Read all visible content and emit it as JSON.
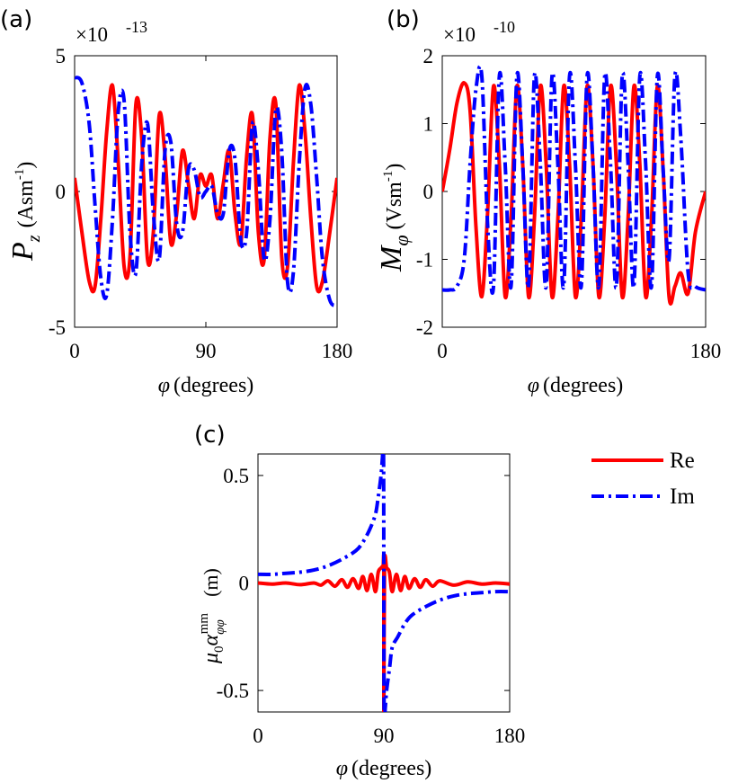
{
  "chart_data": [
    {
      "type": "line",
      "panel": "(a)",
      "ylabel": "P_z (Asm^-1)",
      "ylabel_symbol": "P",
      "ylabel_sub": "z",
      "ylabel_unit": "(Asm",
      "ylabel_exp": "-1",
      "ylabel_close": ")",
      "xlabel": "φ (degrees)",
      "xlabel_symbol": "φ",
      "xlabel_unit": "(degrees)",
      "multiplier": "×10",
      "multiplier_exp": "-13",
      "xlim": [
        0,
        180
      ],
      "ylim": [
        -5,
        5
      ],
      "xticks": [
        "0",
        "90",
        "180"
      ],
      "yticks": [
        "5",
        "0",
        "-5"
      ],
      "ytick_values": [
        5,
        0,
        -5
      ],
      "xtick_values": [
        0,
        90,
        180
      ],
      "series": [
        {
          "name": "Re",
          "color": "#ff0000",
          "style": "solid",
          "x": [
            0,
            5,
            10,
            14,
            18,
            22,
            26,
            30,
            34,
            38,
            42,
            46,
            50,
            54,
            58,
            62,
            66,
            70,
            74,
            78,
            82,
            86,
            90,
            94,
            98,
            102,
            106,
            110,
            114,
            118,
            122,
            126,
            130,
            134,
            138,
            142,
            146,
            150,
            154,
            158,
            162,
            166,
            170,
            175,
            180
          ],
          "y": [
            0.5,
            -1.5,
            -3.3,
            -3.5,
            -1.0,
            2.2,
            3.9,
            1.0,
            -2.8,
            -2.4,
            3.2,
            2.0,
            -2.5,
            -1.5,
            2.8,
            1.3,
            -1.9,
            -0.8,
            1.5,
            0.3,
            -1.0,
            0.6,
            0.2,
            0.6,
            -1.0,
            0.3,
            1.5,
            -0.8,
            -1.9,
            1.3,
            2.8,
            -1.5,
            -2.5,
            2.0,
            3.2,
            -2.4,
            -2.8,
            1.0,
            3.9,
            2.2,
            -1.0,
            -3.5,
            -3.3,
            -1.5,
            0.5
          ]
        },
        {
          "name": "Im",
          "color": "#0000ff",
          "style": "dashdot",
          "x": [
            0,
            5,
            10,
            14,
            18,
            22,
            26,
            30,
            34,
            38,
            42,
            46,
            50,
            54,
            58,
            62,
            66,
            70,
            74,
            78,
            82,
            86,
            90,
            94,
            98,
            102,
            106,
            110,
            114,
            118,
            122,
            126,
            130,
            134,
            138,
            142,
            146,
            150,
            154,
            158,
            162,
            166,
            170,
            175,
            180
          ],
          "y": [
            4.2,
            4.0,
            2.5,
            -0.5,
            -3.2,
            -3.8,
            -1.0,
            3.0,
            3.3,
            -1.5,
            -3.0,
            1.0,
            2.5,
            -0.8,
            -2.5,
            1.5,
            1.8,
            -1.2,
            -1.5,
            0.8,
            0.8,
            -0.2,
            0.0,
            0.2,
            -0.8,
            -0.8,
            1.5,
            1.2,
            -1.8,
            -1.5,
            2.5,
            0.8,
            -2.5,
            -1.0,
            3.0,
            1.5,
            -3.3,
            -3.0,
            1.0,
            3.8,
            3.2,
            0.5,
            -2.5,
            -4.0,
            -4.2
          ]
        }
      ]
    },
    {
      "type": "line",
      "panel": "(b)",
      "ylabel": "M_φ (Vsm^-1)",
      "ylabel_symbol": "M",
      "ylabel_sub": "φ",
      "ylabel_unit": "(Vsm",
      "ylabel_exp": "-1",
      "ylabel_close": ")",
      "xlabel": "φ (degrees)",
      "xlabel_symbol": "φ",
      "xlabel_unit": "(degrees)",
      "multiplier": "×10",
      "multiplier_exp": "-10",
      "xlim": [
        0,
        180
      ],
      "ylim": [
        -2,
        2
      ],
      "xticks": [
        "0",
        "180"
      ],
      "xtick_values": [
        0,
        180
      ],
      "yticks": [
        "2",
        "1",
        "0",
        "-1",
        "-2"
      ],
      "ytick_values": [
        2,
        1,
        0,
        -1,
        -2
      ],
      "series": [
        {
          "name": "Re",
          "color": "#ff0000",
          "style": "solid",
          "x": [
            0,
            5,
            10,
            15,
            19,
            23,
            27,
            31,
            35,
            39,
            43,
            47,
            51,
            55,
            59,
            63,
            67,
            71,
            75,
            79,
            83,
            87,
            91,
            95,
            99,
            103,
            107,
            111,
            115,
            119,
            123,
            127,
            131,
            135,
            139,
            143,
            147,
            151,
            155,
            159,
            163,
            168,
            173,
            180
          ],
          "y": [
            0.0,
            0.6,
            1.3,
            1.6,
            1.2,
            -0.5,
            -1.55,
            -0.3,
            1.55,
            0.4,
            -1.55,
            -0.4,
            1.55,
            0.4,
            -1.55,
            -0.4,
            1.55,
            0.4,
            -1.55,
            -0.4,
            1.55,
            0.4,
            -1.55,
            -0.4,
            1.55,
            0.4,
            -1.55,
            -0.4,
            1.55,
            0.4,
            -1.55,
            -0.4,
            1.55,
            0.4,
            -1.55,
            -0.4,
            1.55,
            0.3,
            -1.55,
            -1.4,
            -1.2,
            -1.5,
            -0.6,
            0.0
          ]
        },
        {
          "name": "Im",
          "color": "#0000ff",
          "style": "dashdot",
          "x": [
            0,
            5,
            10,
            15,
            19,
            23,
            27,
            31,
            35,
            39,
            43,
            47,
            51,
            55,
            59,
            63,
            67,
            71,
            75,
            79,
            83,
            87,
            91,
            95,
            99,
            103,
            107,
            111,
            115,
            119,
            123,
            127,
            131,
            135,
            139,
            143,
            147,
            151,
            155,
            159,
            163,
            168,
            173,
            180
          ],
          "y": [
            -1.45,
            -1.45,
            -1.4,
            -1.0,
            0.4,
            1.5,
            1.7,
            -0.5,
            -1.4,
            1.7,
            0.4,
            -1.4,
            1.7,
            0.4,
            -1.4,
            1.7,
            0.4,
            -1.4,
            1.7,
            0.4,
            -1.4,
            1.7,
            0.4,
            -1.4,
            1.7,
            0.4,
            -1.4,
            1.7,
            0.4,
            -1.4,
            1.7,
            0.4,
            -1.4,
            1.7,
            0.4,
            -1.4,
            1.7,
            0.3,
            -1.0,
            1.7,
            0.8,
            -1.2,
            -1.4,
            -1.45
          ]
        }
      ]
    },
    {
      "type": "line",
      "panel": "(c)",
      "ylabel": "μ0 α_φφ^mm (m)",
      "ylabel_mu": "μ",
      "ylabel_mu_sub": "0",
      "ylabel_alpha": "α",
      "ylabel_sub": "φφ",
      "ylabel_sup": "mm",
      "ylabel_unit": "(m)",
      "xlabel": "φ (degrees)",
      "xlabel_symbol": "φ",
      "xlabel_unit": "(degrees)",
      "xlim": [
        0,
        180
      ],
      "ylim": [
        -0.6,
        0.6
      ],
      "xticks": [
        "0",
        "90",
        "180"
      ],
      "xtick_values": [
        0,
        90,
        180
      ],
      "yticks": [
        "0.5",
        "0",
        "-0.5"
      ],
      "ytick_values": [
        0.5,
        0,
        -0.5
      ],
      "series": [
        {
          "name": "Re",
          "color": "#ff0000",
          "style": "solid",
          "x": [
            0,
            10,
            20,
            30,
            40,
            45,
            50,
            55,
            60,
            64,
            68,
            72,
            75,
            78,
            81,
            84,
            86,
            88,
            89.5,
            90,
            90,
            90.5,
            92,
            94,
            96,
            99,
            102,
            105,
            108,
            112,
            116,
            120,
            125,
            130,
            140,
            150,
            160,
            170,
            180
          ],
          "y": [
            0.0,
            -0.005,
            0.0,
            -0.008,
            0.0,
            -0.01,
            0.01,
            -0.015,
            0.015,
            -0.02,
            0.02,
            -0.025,
            0.03,
            -0.035,
            0.04,
            -0.04,
            0.05,
            0.07,
            0.08,
            0.08,
            -0.6,
            0.08,
            0.07,
            0.05,
            -0.04,
            0.04,
            -0.035,
            0.03,
            -0.025,
            0.02,
            -0.02,
            0.015,
            -0.015,
            0.01,
            -0.01,
            0.005,
            -0.005,
            0.0,
            -0.005
          ]
        },
        {
          "name": "Im",
          "color": "#0000ff",
          "style": "dashdot",
          "x": [
            0,
            10,
            20,
            30,
            40,
            50,
            60,
            70,
            75,
            80,
            84,
            86,
            88,
            89,
            89.8,
            90.2,
            91,
            92,
            94,
            96,
            100,
            105,
            110,
            120,
            130,
            140,
            150,
            160,
            170,
            180
          ],
          "y": [
            0.04,
            0.04,
            0.045,
            0.05,
            0.06,
            0.08,
            0.11,
            0.15,
            0.19,
            0.25,
            0.32,
            0.4,
            0.5,
            0.58,
            0.6,
            -0.6,
            -0.58,
            -0.5,
            -0.4,
            -0.3,
            -0.25,
            -0.19,
            -0.15,
            -0.11,
            -0.08,
            -0.06,
            -0.05,
            -0.045,
            -0.04,
            -0.04
          ]
        }
      ]
    }
  ],
  "legend": {
    "entries": [
      {
        "label": "Re",
        "color": "#ff0000",
        "style": "solid"
      },
      {
        "label": "Im",
        "color": "#0000ff",
        "style": "dashdot"
      }
    ]
  }
}
